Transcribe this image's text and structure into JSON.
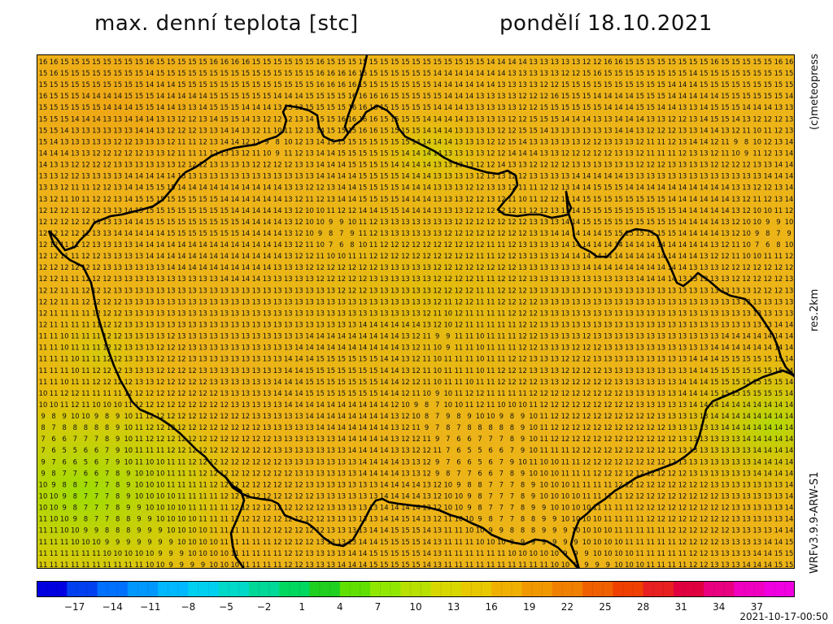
{
  "header": {
    "title": "max. denní teplota [stc]",
    "date": "pondělí 18.10.2021"
  },
  "side": {
    "credit": "(c)meteopress",
    "resolution": "res.2km",
    "model": "WRFv3.9.9-ARW-S1"
  },
  "footer": {
    "timestamp": "2021-10-17-00:50"
  },
  "colorbar": {
    "ticks": [
      "−17",
      "−14",
      "−11",
      "−8",
      "−5",
      "−2",
      "1",
      "4",
      "7",
      "10",
      "13",
      "16",
      "19",
      "22",
      "25",
      "28",
      "31",
      "34",
      "37"
    ],
    "min": -20,
    "max": 40,
    "colors": [
      "#0000e0",
      "#0040f0",
      "#0070ff",
      "#0098ff",
      "#00b8ff",
      "#00d0f0",
      "#00d8c8",
      "#00d898",
      "#00d860",
      "#20d020",
      "#60e000",
      "#90e800",
      "#b8e000",
      "#d8d800",
      "#e8c800",
      "#f0b000",
      "#f09800",
      "#f08000",
      "#f06000",
      "#f04000",
      "#e82020",
      "#e00040",
      "#e80080",
      "#f000c0",
      "#f000e0"
    ]
  },
  "map": {
    "region": "Czech Republic",
    "value_unit": "°C",
    "grid_rows": [
      "16 16 15 15 15 15 15 15 15 15 16 15 15 15 15 15 16 16 16 16 15 15 15 15 15 15 16 15 15 15 15 15 15 15 15 15 15 15 15 15 15 15 14 14 14 14 13 13 13 13 13 12 12",
      "15 16 15 15 15 15 15 15 15 15 14 15 15 15 15 15 15 15 15 15 15 15 15 15 15 15 16 16 16 16 15 15 15 15 15 15 15 14 14 14 14 14 14 14 13 13 13 13 13 12 12",
      "15 15 15 15 15 15 15 15 15 15 14 14 14 15 15 15 15 15 15 15 15 15 15 15 15 15 16 16 16 16 15 15 15 15 15 15 15 14 14 14 14 14 14 13 13 13 13 12 12",
      "16 15 15 15 14 14 14 14 15 15 15 14 14 14 14 14 15 15 15 15 15 15 14 14 14 15 15 15 15 16 16 16 16 15 15 15 15 15 14 14 14 13 13 13 13 12 12 12",
      "15 15 15 15 15 15 14 14 14 15 15 14 14 13 13 14 15 15 15 14 14 14 13 13 13 15 15 15 15 16 16 16 15 15 15 15 15 14 14 14 13 13 13 13 13 12 12",
      "15 15 15 14 14 14 13 13 14 14 14 13 13 12 12 13 14 15 15 14 13 12 12 12 13 14 15 15 16 16 16 16 15 15 15 15 14 14 14 14 13 13 13 13 12 12",
      "15 15 14 13 13 13 13 13 13 14 14 13 12 12 12 13 13 14 14 13 12 11 10 11 12 13 14 15 15 15 16 16 15 15 15 15 14 14 14 13 13 13 13 12 12",
      "15 14 13 13 13 13 13 12 12 13 13 13 12 11 11 12 13 14 14 12 11 9 8 10 12 13 14 15 15 15 15 15 15 15 15 14 14 14 14 13 13 13 12 12",
      "14 14 14 13 13 12 12 12 12 12 13 13 12 11 11 11 12 13 13 12 11 10 9 11 12 13 14 14 15 15 15 15 15 15 14 14 14 14 13 13 13 13 12 12",
      "14 13 13 12 12 12 12 13 13 13 13 13 13 12 12 12 13 13 13 13 12 12 12 12 13 13 14 14 14 15 15 15 15 14 14 14 14 13 13 13 13 12 12",
      "13 13 12 12 13 13 13 13 14 14 14 14 14 13 13 13 13 13 13 13 13 13 13 13 13 13 14 14 14 14 15 15 15 15 14 14 14 13 13 13 13 12",
      "13 13 12 11 11 12 12 13 14 14 15 15 15 14 14 14 14 14 14 14 14 14 14 13 13 12 12 13 14 14 15 15 15 15 14 14 14 13 13 13 12 12",
      "13 12 11 10 11 12 12 13 14 15 15 15 15 15 15 15 15 14 14 14 14 14 14 13 12 11 12 13 14 14 15 15 15 15 14 14 14 13 13 13 12 12",
      "12 12 12 11 12 12 13 13 14 15 15 15 15 15 15 15 15 15 14 14 14 14 14 13 12 10 10 11 12 12 14 14 15 15 14 14 14 13 13 13 12 12",
      "12 12 12 12 12 13 13 13 14 14 15 15 15 15 15 15 15 15 15 14 14 14 14 13 12 10 10 9 9 10 11 12 13 13 13 13 13 13 13 12 12",
      "12 12 12 12 12 13 13 14 14 14 14 14 15 15 15 15 15 15 15 14 14 14 14 13 12 10 9 8 7 9 11 12 13 13 13 13 13 13 12 12 12",
      "12 12 11 11 12 13 13 13 13 14 14 14 14 14 14 14 14 14 14 14 14 14 14 13 12 11 10 7 6 8 10 11 12 12 12 12 12 12 12 12",
      "12 12 11 11 12 12 13 13 13 13 14 14 14 14 14 14 14 14 14 14 14 14 14 13 12 12 11 10 10 11 11 12 12 12 12 12 12 12 12",
      "12 12 12 12 12 12 13 13 13 13 13 13 14 14 14 14 14 14 14 14 14 14 13 13 13 12 12 12 12 12 12 12 13 13 13 13 13 12 12",
      "12 12 11 11 12 12 12 13 13 13 13 13 13 13 13 13 13 14 14 14 14 13 13 13 13 13 12 12 12 12 12 13 13 13 13 13 13 12 12",
      "12 12 11 11 12 12 12 13 13 13 13 13 13 13 13 13 13 13 13 13 13 13 13 13 13 13 13 13 12 12 12 13 13 13 13 13 13 12 12",
      "12 12 11 11 12 12 12 12 13 13 13 13 13 13 13 13 13 13 13 13 13 13 13 13 13 13 13 13 13 13 13 13 13 13 13 13 13 12 11",
      "12 11 11 11 11 12 12 12 13 13 13 13 13 13 13 13 13 13 13 13 13 13 13 13 13 13 13 13 13 13 13 13 13 13 13 13 12 11 10",
      "12 11 11 11 11 11 12 12 13 13 13 13 13 13 13 13 13 13 13 13 13 13 13 13 13 13 13 13 13 13 14 14 14 14 14 14 13 12 10",
      "11 11 10 11 11 11 12 12 13 13 13 13 12 13 13 13 13 13 13 13 13 13 13 13 13 14 14 14 14 14 14 14 14 14 13 12 11 9 9",
      "11 11 10 11 11 11 12 12 13 13 13 12 12 12 13 13 13 13 13 13 13 13 13 13 14 14 14 14 14 14 14 14 14 14 13 12 11 10 9",
      "11 11 11 10 11 11 12 12 13 13 13 12 12 12 13 13 13 13 13 13 13 13 13 14 14 14 15 15 15 15 15 15 14 14 13 12 11 10",
      "11 11 11 10 11 12 12 12 13 13 13 12 12 12 12 13 13 13 13 13 13 13 13 14 14 15 15 15 15 15 15 15 14 14 13 12 11 10",
      "11 11 10 11 11 12 12 12 12 13 13 12 12 12 12 12 13 13 13 13 13 13 14 14 14 15 15 15 15 15 15 15 14 14 12 12 11 10",
      "10 11 12 12 11 11 11 11 12 12 12 12 12 12 12 12 12 13 13 13 13 13 14 14 14 15 15 15 15 15 15 15 14 14 12 11 10 9",
      "10 10 11 12 11 10 10 10 11 12 12 12 12 12 12 12 12 12 13 13 13 13 13 14 14 14 14 14 14 14 14 14 14 12 10 9 8 7",
      "9 8 9 10 10 9 8 9 10 11 12 12 12 12 12 12 12 12 12 12 13 13 13 13 13 14 14 14 14 14 14 14 14 13 12 10 8 7",
      "8 7 8 8 8 8 8 9 10 11 12 12 12 12 12 12 12 12 12 12 12 13 13 13 13 13 14 14 14 14 14 14 14 13 12 11 9 7",
      "7 6 6 7 7 7 8 9 10 11 12 12 12 12 12 12 12 12 12 12 12 12 13 13 13 13 13 13 14 14 14 14 14 13 12 12 11 9",
      "7 6 5 5 6 6 7 9 10 11 11 11 12 12 12 12 12 12 12 12 12 12 13 13 13 13 13 13 13 14 14 14 14 13 13 12 12 11",
      "9 7 6 6 5 6 7 9 10 11 10 10 11 11 12 12 12 12 12 12 12 12 12 13 13 13 13 13 13 13 14 14 14 14 13 13 12",
      "9 8 7 7 6 6 7 8 9 10 10 10 11 11 11 12 12 12 12 12 12 12 12 12 13 13 13 13 13 13 14 14 14 14 13 13 12",
      "10 9 8 8 7 7 7 8 9 10 10 10 11 11 11 11 12 12 12 12 12 12 12 12 12 13 13 13 13 13 13 13 14 14 14 14 13 12",
      "10 10 9 8 7 7 7 8 9 10 10 10 10 11 11 11 11 12 12 12 12 12 12 12 12 12 13 13 13 13 13 13 14 14 14 14 13 12",
      "10 10 9 8 7 7 7 8 9 9 10 10 10 10 11 11 11 11 12 12 12 12 12 12 12 12 12 13 13 13 13 13 14 14 14 14 13 12",
      "11 10 10 9 8 7 7 8 8 9 9 10 10 10 10 11 11 11 11 12 12 12 12 12 12 12 12 13 13 13 13 13 14 14 15 14 13 12",
      "11 11 10 10 9 9 8 8 8 9 9 9 10 10 10 10 11 11 11 11 11 12 12 12 12 12 12 13 13 13 13 14 14 15 15 15 14 13",
      "11 11 11 10 10 10 9 9 9 9 9 9 9 10 10 10 10 11 11 11 11 11 12 12 12 12 13 13 13 13 14 14 15 15 15 15 14 13",
      "11 11 11 11 11 11 10 10 10 10 10 9 9 9 10 10 10 10 11 11 11 11 11 12 12 13 13 13 13 14 14 15 15 15 15 15 14 13",
      "11 11 11 11 11 11 11 11 11 11 10 10 9 9 9 9 10 10 10 11 11 11 11 12 12 13 13 13 14 14 14 15 15 15 15 15 14 13"
    ]
  }
}
